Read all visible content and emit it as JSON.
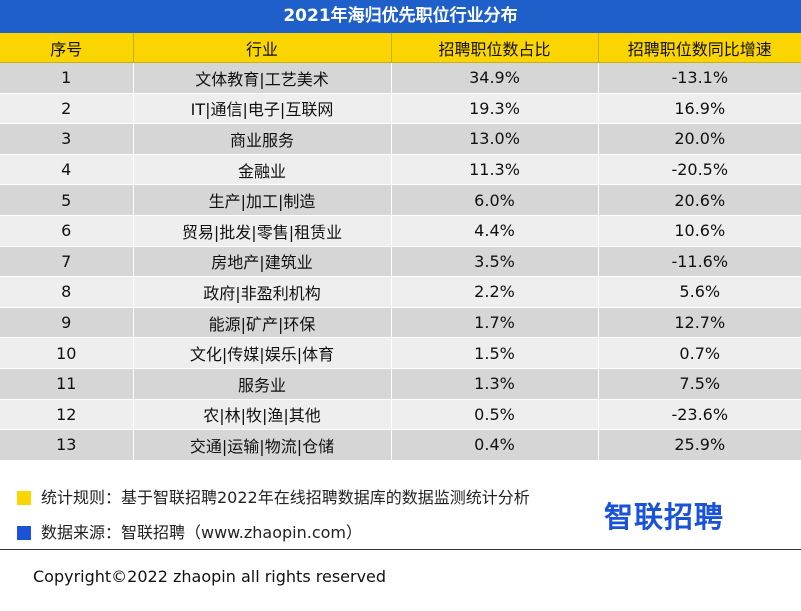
{
  "title": "2021年海归优先职位行业分布",
  "table": {
    "headers": [
      "序号",
      "行业",
      "招聘职位数占比",
      "招聘职位数同比增速"
    ],
    "rows": [
      [
        "1",
        "文体教育|工艺美术",
        "34.9%",
        "-13.1%"
      ],
      [
        "2",
        "IT|通信|电子|互联网",
        "19.3%",
        "16.9%"
      ],
      [
        "3",
        "商业服务",
        "13.0%",
        "20.0%"
      ],
      [
        "4",
        "金融业",
        "11.3%",
        "-20.5%"
      ],
      [
        "5",
        "生产|加工|制造",
        "6.0%",
        "20.6%"
      ],
      [
        "6",
        "贸易|批发|零售|租赁业",
        "4.4%",
        "10.6%"
      ],
      [
        "7",
        "房地产|建筑业",
        "3.5%",
        "-11.6%"
      ],
      [
        "8",
        "政府|非盈利机构",
        "2.2%",
        "5.6%"
      ],
      [
        "9",
        "能源|矿产|环保",
        "1.7%",
        "12.7%"
      ],
      [
        "10",
        "文化|传媒|娱乐|体育",
        "1.5%",
        "0.7%"
      ],
      [
        "11",
        "服务业",
        "1.3%",
        "7.5%"
      ],
      [
        "12",
        "农|林|牧|渔|其他",
        "0.5%",
        "-23.6%"
      ],
      [
        "13",
        "交通|运输|物流|仓储",
        "0.4%",
        "25.9%"
      ]
    ]
  },
  "notes": {
    "rule": "统计规则：基于智联招聘2022年在线招聘数据库的数据监测统计分析",
    "source": "数据来源：智联招聘（www.zhaopin.com）"
  },
  "logo_text": "智联招聘",
  "copyright": "Copyright©2022 zhaopin all rights reserved",
  "colors": {
    "title_bg": "#1f5fc9",
    "header_bg": "#fbd500",
    "swatch_yellow": "#fbd500",
    "swatch_blue": "#1a53d8",
    "logo": "#1a53d8"
  }
}
